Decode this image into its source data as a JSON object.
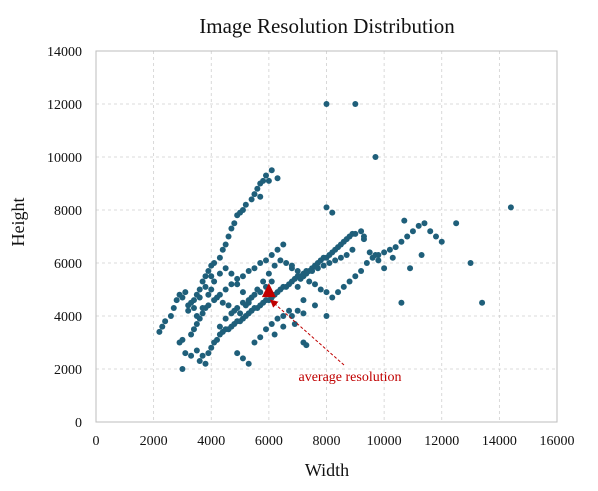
{
  "chart_data": {
    "type": "scatter",
    "title": "Image Resolution Distribution",
    "xlabel": "Width",
    "ylabel": "Height",
    "xlim": [
      0,
      16000
    ],
    "ylim": [
      0,
      14000
    ],
    "xticks": [
      "0",
      "2000",
      "4000",
      "6000",
      "8000",
      "10000",
      "12000",
      "14000",
      "16000"
    ],
    "yticks": [
      "0",
      "2000",
      "4000",
      "6000",
      "8000",
      "10000",
      "12000",
      "14000"
    ],
    "grid": true,
    "colors": {
      "points": "#1f5f7a",
      "average": "#c00000"
    },
    "annotation": {
      "text": "average resolution",
      "x": 6000,
      "y": 4900
    },
    "average": {
      "x": 6000,
      "y": 4900
    },
    "points": [
      [
        2200,
        3400
      ],
      [
        2300,
        3600
      ],
      [
        2400,
        3800
      ],
      [
        2600,
        4000
      ],
      [
        2700,
        4300
      ],
      [
        2800,
        4600
      ],
      [
        2900,
        4800
      ],
      [
        3000,
        4700
      ],
      [
        3100,
        4900
      ],
      [
        3200,
        4400
      ],
      [
        3300,
        4500
      ],
      [
        3400,
        4600
      ],
      [
        3500,
        4800
      ],
      [
        3600,
        5000
      ],
      [
        3700,
        5300
      ],
      [
        3800,
        5500
      ],
      [
        3900,
        5700
      ],
      [
        4000,
        5900
      ],
      [
        4100,
        6000
      ],
      [
        4000,
        5500
      ],
      [
        3800,
        5100
      ],
      [
        3600,
        4700
      ],
      [
        3400,
        4300
      ],
      [
        3200,
        4200
      ],
      [
        3000,
        3100
      ],
      [
        2900,
        3000
      ],
      [
        3100,
        2600
      ],
      [
        3000,
        2000
      ],
      [
        3300,
        2500
      ],
      [
        3500,
        2700
      ],
      [
        3600,
        2300
      ],
      [
        3700,
        2500
      ],
      [
        3800,
        2200
      ],
      [
        3900,
        2600
      ],
      [
        4000,
        2800
      ],
      [
        4100,
        3000
      ],
      [
        4200,
        3100
      ],
      [
        4300,
        3300
      ],
      [
        4400,
        3400
      ],
      [
        4500,
        3500
      ],
      [
        4600,
        3500
      ],
      [
        4700,
        3600
      ],
      [
        4800,
        3700
      ],
      [
        4900,
        3800
      ],
      [
        5000,
        3800
      ],
      [
        5100,
        3900
      ],
      [
        5200,
        4000
      ],
      [
        5300,
        4100
      ],
      [
        5400,
        4200
      ],
      [
        5500,
        4300
      ],
      [
        5600,
        4300
      ],
      [
        5700,
        4400
      ],
      [
        5800,
        4500
      ],
      [
        5900,
        4600
      ],
      [
        6000,
        4600
      ],
      [
        6100,
        4700
      ],
      [
        6200,
        4800
      ],
      [
        6300,
        4900
      ],
      [
        6400,
        5000
      ],
      [
        6500,
        5100
      ],
      [
        6600,
        5100
      ],
      [
        6700,
        5200
      ],
      [
        6800,
        5300
      ],
      [
        6900,
        5400
      ],
      [
        7000,
        5500
      ],
      [
        7100,
        5500
      ],
      [
        7200,
        5600
      ],
      [
        7300,
        5700
      ],
      [
        7400,
        5700
      ],
      [
        7500,
        5800
      ],
      [
        7600,
        5900
      ],
      [
        7700,
        6000
      ],
      [
        7800,
        6100
      ],
      [
        7900,
        6200
      ],
      [
        8000,
        6200
      ],
      [
        8100,
        6300
      ],
      [
        8200,
        6400
      ],
      [
        8300,
        6500
      ],
      [
        8400,
        6600
      ],
      [
        8500,
        6700
      ],
      [
        8600,
        6800
      ],
      [
        8700,
        6900
      ],
      [
        8800,
        7000
      ],
      [
        8900,
        7100
      ],
      [
        9000,
        7100
      ],
      [
        9200,
        7200
      ],
      [
        9300,
        7000
      ],
      [
        9500,
        6400
      ],
      [
        9700,
        6300
      ],
      [
        9800,
        6100
      ],
      [
        4300,
        6200
      ],
      [
        4400,
        6500
      ],
      [
        4500,
        6700
      ],
      [
        4600,
        7000
      ],
      [
        4700,
        7300
      ],
      [
        4800,
        7500
      ],
      [
        4900,
        7800
      ],
      [
        5000,
        7900
      ],
      [
        5100,
        8000
      ],
      [
        5200,
        8200
      ],
      [
        5400,
        8400
      ],
      [
        5500,
        8600
      ],
      [
        5600,
        8800
      ],
      [
        5700,
        9000
      ],
      [
        5800,
        9100
      ],
      [
        5900,
        9300
      ],
      [
        6100,
        9500
      ],
      [
        6300,
        9200
      ],
      [
        6000,
        9100
      ],
      [
        5700,
        8500
      ],
      [
        4000,
        5000
      ],
      [
        4200,
        4700
      ],
      [
        4400,
        4500
      ],
      [
        4600,
        4400
      ],
      [
        4800,
        4200
      ],
      [
        5000,
        4100
      ],
      [
        5200,
        4400
      ],
      [
        5400,
        4700
      ],
      [
        5600,
        5000
      ],
      [
        5800,
        5300
      ],
      [
        6000,
        5600
      ],
      [
        6200,
        5900
      ],
      [
        6400,
        6100
      ],
      [
        6600,
        6000
      ],
      [
        6800,
        5800
      ],
      [
        7000,
        5700
      ],
      [
        7200,
        5500
      ],
      [
        7400,
        5300
      ],
      [
        7600,
        5200
      ],
      [
        7800,
        5000
      ],
      [
        8000,
        4900
      ],
      [
        8200,
        4700
      ],
      [
        8400,
        4900
      ],
      [
        8600,
        5100
      ],
      [
        8800,
        5300
      ],
      [
        9000,
        5500
      ],
      [
        9200,
        5700
      ],
      [
        9400,
        6000
      ],
      [
        9600,
        6200
      ],
      [
        9800,
        6300
      ],
      [
        10000,
        6400
      ],
      [
        10200,
        6500
      ],
      [
        10400,
        6600
      ],
      [
        10600,
        6800
      ],
      [
        10800,
        7000
      ],
      [
        11000,
        7200
      ],
      [
        11200,
        7400
      ],
      [
        11400,
        7500
      ],
      [
        11600,
        7200
      ],
      [
        11800,
        7000
      ],
      [
        8000,
        8100
      ],
      [
        8200,
        7900
      ],
      [
        9300,
        6900
      ],
      [
        10000,
        5800
      ],
      [
        10300,
        6200
      ],
      [
        10700,
        7600
      ],
      [
        10900,
        5800
      ],
      [
        11300,
        6300
      ],
      [
        12000,
        6800
      ],
      [
        12500,
        7500
      ],
      [
        13000,
        6000
      ],
      [
        13400,
        4500
      ],
      [
        14400,
        8100
      ],
      [
        10600,
        4500
      ],
      [
        9700,
        10000
      ],
      [
        8000,
        12000
      ],
      [
        9000,
        12000
      ],
      [
        6800,
        4000
      ],
      [
        7000,
        4200
      ],
      [
        7200,
        4100
      ],
      [
        4900,
        2600
      ],
      [
        5100,
        2400
      ],
      [
        5300,
        2200
      ],
      [
        5500,
        3000
      ],
      [
        5700,
        3200
      ],
      [
        5900,
        3500
      ],
      [
        6100,
        3700
      ],
      [
        6300,
        3900
      ],
      [
        6500,
        4000
      ],
      [
        6700,
        4200
      ],
      [
        3300,
        3300
      ],
      [
        3400,
        3500
      ],
      [
        3500,
        3700
      ],
      [
        3600,
        3900
      ],
      [
        3700,
        4100
      ],
      [
        3800,
        4300
      ],
      [
        3900,
        4400
      ],
      [
        4100,
        4600
      ],
      [
        4300,
        4800
      ],
      [
        4500,
        5000
      ],
      [
        4700,
        5200
      ],
      [
        4900,
        5400
      ],
      [
        5100,
        5500
      ],
      [
        5300,
        5700
      ],
      [
        5500,
        5800
      ],
      [
        5700,
        6000
      ],
      [
        5900,
        6100
      ],
      [
        6100,
        6300
      ],
      [
        6300,
        6500
      ],
      [
        6500,
        6700
      ],
      [
        4300,
        3600
      ],
      [
        4500,
        3900
      ],
      [
        4700,
        4100
      ],
      [
        4900,
        4300
      ],
      [
        5100,
        4500
      ],
      [
        5300,
        4600
      ],
      [
        5500,
        4800
      ],
      [
        5700,
        4900
      ],
      [
        5900,
        5100
      ],
      [
        6100,
        5300
      ],
      [
        7100,
        5400
      ],
      [
        7300,
        5600
      ],
      [
        7500,
        5700
      ],
      [
        7700,
        5800
      ],
      [
        7900,
        5900
      ],
      [
        8100,
        6000
      ],
      [
        8300,
        6100
      ],
      [
        8500,
        6200
      ],
      [
        8700,
        6300
      ],
      [
        8900,
        6500
      ],
      [
        3500,
        4000
      ],
      [
        3700,
        4300
      ],
      [
        3900,
        4800
      ],
      [
        4100,
        5300
      ],
      [
        4300,
        5600
      ],
      [
        4500,
        5800
      ],
      [
        4700,
        5600
      ],
      [
        4900,
        5200
      ],
      [
        5100,
        4900
      ],
      [
        5300,
        4500
      ],
      [
        6900,
        3700
      ],
      [
        7200,
        3000
      ],
      [
        7300,
        2900
      ],
      [
        6200,
        3300
      ],
      [
        6500,
        3600
      ],
      [
        6800,
        5900
      ],
      [
        7000,
        5100
      ],
      [
        7200,
        4600
      ],
      [
        7600,
        4400
      ],
      [
        8000,
        4000
      ]
    ]
  }
}
